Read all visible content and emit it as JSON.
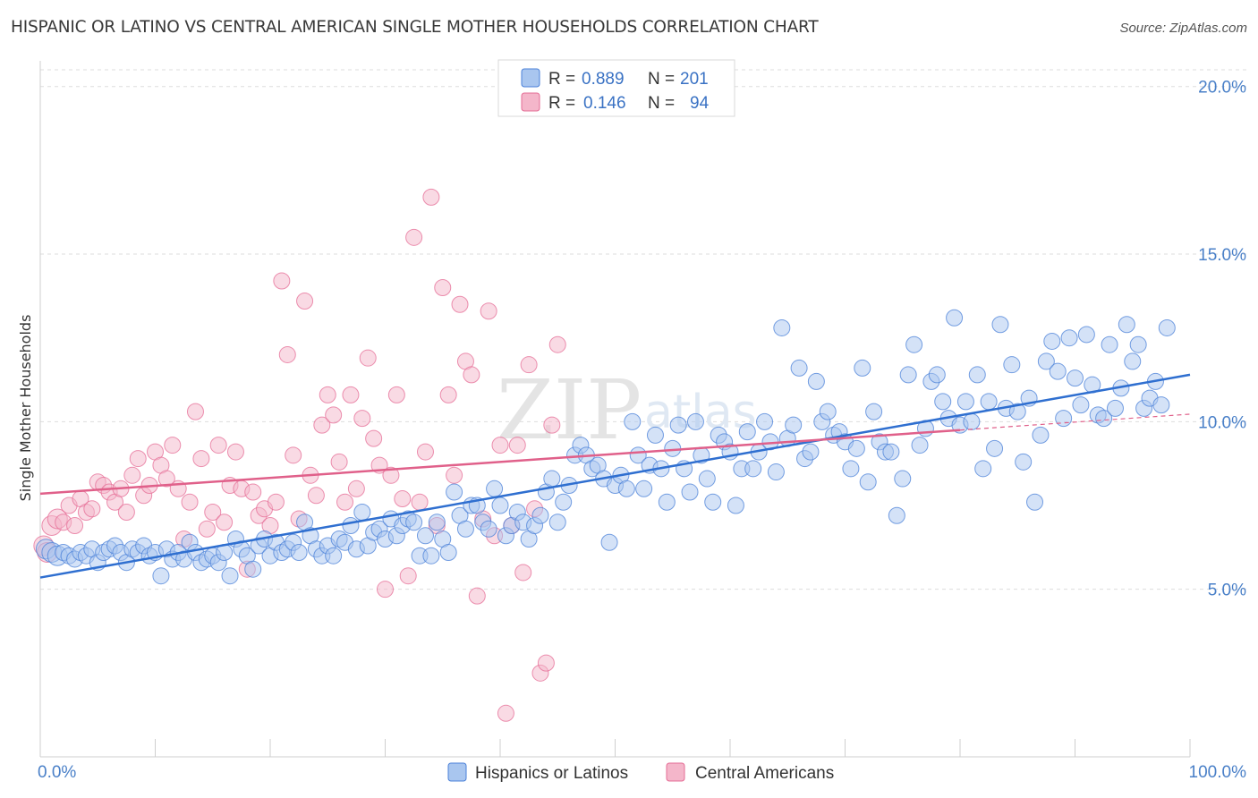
{
  "title": "HISPANIC OR LATINO VS CENTRAL AMERICAN SINGLE MOTHER HOUSEHOLDS CORRELATION CHART",
  "source": "Source: ZipAtlas.com",
  "watermark": {
    "main": "ZIP",
    "sub": "atlas"
  },
  "colors": {
    "blue": "#4a80d8",
    "blue_fill": "#a9c6ef",
    "blue_line": "#2f6fd0",
    "pink": "#e56c95",
    "pink_fill": "#f4b6ca",
    "pink_line": "#e0608a",
    "tick": "#4a80c8",
    "grid": "#dddddd"
  },
  "legend": {
    "rows": [
      {
        "r_label": "R =",
        "r_value": "0.889",
        "n_label": "N =",
        "n_value": "201"
      },
      {
        "r_label": "R =",
        "r_value": "0.146",
        "n_label": "N =",
        "n_value": "94"
      }
    ]
  },
  "bottom_legend": [
    "Hispanics or Latinos",
    "Central Americans"
  ],
  "chart_data": {
    "type": "scatter",
    "title": "HISPANIC OR LATINO VS CENTRAL AMERICAN SINGLE MOTHER HOUSEHOLDS CORRELATION CHART",
    "xlabel": "",
    "ylabel": "Single Mother Households",
    "xlim": [
      0,
      100
    ],
    "ylim": [
      0,
      20.5
    ],
    "x_tick_labels": [
      "0.0%",
      "100.0%"
    ],
    "y_ticks": [
      5,
      10,
      15,
      20
    ],
    "y_tick_labels": [
      "5.0%",
      "10.0%",
      "15.0%",
      "20.0%"
    ],
    "grid": true,
    "legend_position": "top-center",
    "series": [
      {
        "name": "Hispanics or Latinos",
        "color": "#4a80d8",
        "trend": {
          "x": [
            0,
            100
          ],
          "y": [
            5.35,
            11.4
          ]
        },
        "points": [
          [
            0.5,
            6.2
          ],
          [
            1,
            6.1
          ],
          [
            1.5,
            6.0
          ],
          [
            2,
            6.1
          ],
          [
            2.5,
            6.0
          ],
          [
            3,
            5.9
          ],
          [
            3.5,
            6.1
          ],
          [
            4,
            6.0
          ],
          [
            4.5,
            6.2
          ],
          [
            5,
            5.8
          ],
          [
            5.5,
            6.1
          ],
          [
            6,
            6.2
          ],
          [
            6.5,
            6.3
          ],
          [
            7,
            6.1
          ],
          [
            7.5,
            5.8
          ],
          [
            8,
            6.2
          ],
          [
            8.5,
            6.1
          ],
          [
            9,
            6.3
          ],
          [
            9.5,
            6.0
          ],
          [
            10,
            6.1
          ],
          [
            10.5,
            5.4
          ],
          [
            11,
            6.2
          ],
          [
            11.5,
            5.9
          ],
          [
            12,
            6.1
          ],
          [
            12.5,
            5.9
          ],
          [
            13,
            6.4
          ],
          [
            13.5,
            6.1
          ],
          [
            14,
            5.8
          ],
          [
            14.5,
            5.9
          ],
          [
            15,
            6.0
          ],
          [
            15.5,
            5.8
          ],
          [
            16,
            6.1
          ],
          [
            16.5,
            5.4
          ],
          [
            17,
            6.5
          ],
          [
            17.5,
            6.2
          ],
          [
            18,
            6.0
          ],
          [
            18.5,
            5.6
          ],
          [
            19,
            6.3
          ],
          [
            19.5,
            6.5
          ],
          [
            20,
            6.0
          ],
          [
            20.5,
            6.4
          ],
          [
            21,
            6.1
          ],
          [
            21.5,
            6.2
          ],
          [
            22,
            6.4
          ],
          [
            22.5,
            6.1
          ],
          [
            23,
            7.0
          ],
          [
            23.5,
            6.6
          ],
          [
            24,
            6.2
          ],
          [
            24.5,
            6.0
          ],
          [
            25,
            6.3
          ],
          [
            25.5,
            6.0
          ],
          [
            26,
            6.5
          ],
          [
            26.5,
            6.4
          ],
          [
            27,
            6.9
          ],
          [
            27.5,
            6.2
          ],
          [
            28,
            7.3
          ],
          [
            28.5,
            6.3
          ],
          [
            29,
            6.7
          ],
          [
            29.5,
            6.8
          ],
          [
            30,
            6.5
          ],
          [
            30.5,
            7.1
          ],
          [
            31,
            6.6
          ],
          [
            31.5,
            6.9
          ],
          [
            32,
            7.1
          ],
          [
            32.5,
            7.0
          ],
          [
            33,
            6.0
          ],
          [
            33.5,
            6.6
          ],
          [
            34,
            6.0
          ],
          [
            34.5,
            7.0
          ],
          [
            35,
            6.5
          ],
          [
            35.5,
            6.1
          ],
          [
            36,
            7.9
          ],
          [
            36.5,
            7.2
          ],
          [
            37,
            6.8
          ],
          [
            37.5,
            7.5
          ],
          [
            38,
            7.5
          ],
          [
            38.5,
            7.0
          ],
          [
            39,
            6.8
          ],
          [
            39.5,
            8.0
          ],
          [
            40,
            7.5
          ],
          [
            40.5,
            6.6
          ],
          [
            41,
            6.9
          ],
          [
            41.5,
            7.3
          ],
          [
            42,
            7.0
          ],
          [
            42.5,
            6.5
          ],
          [
            43,
            6.9
          ],
          [
            43.5,
            7.2
          ],
          [
            44,
            7.9
          ],
          [
            44.5,
            8.3
          ],
          [
            45,
            7.0
          ],
          [
            45.5,
            7.6
          ],
          [
            46,
            8.1
          ],
          [
            46.5,
            9.0
          ],
          [
            47,
            9.3
          ],
          [
            47.5,
            9.0
          ],
          [
            48,
            8.6
          ],
          [
            48.5,
            8.7
          ],
          [
            49,
            8.3
          ],
          [
            49.5,
            6.4
          ],
          [
            50,
            8.1
          ],
          [
            50.5,
            8.4
          ],
          [
            51,
            8.0
          ],
          [
            51.5,
            10.0
          ],
          [
            52,
            9.0
          ],
          [
            52.5,
            8.0
          ],
          [
            53,
            8.7
          ],
          [
            53.5,
            9.6
          ],
          [
            54,
            8.6
          ],
          [
            54.5,
            7.6
          ],
          [
            55,
            9.2
          ],
          [
            55.5,
            9.9
          ],
          [
            56,
            8.6
          ],
          [
            56.5,
            7.9
          ],
          [
            57,
            10.0
          ],
          [
            57.5,
            9.0
          ],
          [
            58,
            8.3
          ],
          [
            58.5,
            7.6
          ],
          [
            59,
            9.6
          ],
          [
            59.5,
            9.4
          ],
          [
            60,
            9.1
          ],
          [
            60.5,
            7.5
          ],
          [
            61,
            8.6
          ],
          [
            61.5,
            9.7
          ],
          [
            62,
            8.6
          ],
          [
            62.5,
            9.1
          ],
          [
            63,
            10.0
          ],
          [
            63.5,
            9.4
          ],
          [
            64,
            8.5
          ],
          [
            64.5,
            12.8
          ],
          [
            65,
            9.5
          ],
          [
            65.5,
            9.9
          ],
          [
            66,
            11.6
          ],
          [
            66.5,
            8.9
          ],
          [
            67,
            9.1
          ],
          [
            67.5,
            11.2
          ],
          [
            68,
            10.0
          ],
          [
            68.5,
            10.3
          ],
          [
            69,
            9.6
          ],
          [
            69.5,
            9.7
          ],
          [
            70,
            9.4
          ],
          [
            70.5,
            8.6
          ],
          [
            71,
            9.2
          ],
          [
            71.5,
            11.6
          ],
          [
            72,
            8.2
          ],
          [
            72.5,
            10.3
          ],
          [
            73,
            9.4
          ],
          [
            73.5,
            9.1
          ],
          [
            74,
            9.1
          ],
          [
            74.5,
            7.2
          ],
          [
            75,
            8.3
          ],
          [
            75.5,
            11.4
          ],
          [
            76,
            12.3
          ],
          [
            76.5,
            9.3
          ],
          [
            77,
            9.8
          ],
          [
            77.5,
            11.2
          ],
          [
            78,
            11.4
          ],
          [
            78.5,
            10.6
          ],
          [
            79,
            10.1
          ],
          [
            79.5,
            13.1
          ],
          [
            80,
            9.9
          ],
          [
            80.5,
            10.6
          ],
          [
            81,
            10.0
          ],
          [
            81.5,
            11.4
          ],
          [
            82,
            8.6
          ],
          [
            82.5,
            10.6
          ],
          [
            83,
            9.2
          ],
          [
            83.5,
            12.9
          ],
          [
            84,
            10.4
          ],
          [
            84.5,
            11.7
          ],
          [
            85,
            10.3
          ],
          [
            85.5,
            8.8
          ],
          [
            86,
            10.7
          ],
          [
            86.5,
            7.6
          ],
          [
            87,
            9.6
          ],
          [
            87.5,
            11.8
          ],
          [
            88,
            12.4
          ],
          [
            88.5,
            11.5
          ],
          [
            89,
            10.1
          ],
          [
            89.5,
            12.5
          ],
          [
            90,
            11.3
          ],
          [
            90.5,
            10.5
          ],
          [
            91,
            12.6
          ],
          [
            91.5,
            11.1
          ],
          [
            92,
            10.2
          ],
          [
            92.5,
            10.1
          ],
          [
            93,
            12.3
          ],
          [
            93.5,
            10.4
          ],
          [
            94,
            11.0
          ],
          [
            94.5,
            12.9
          ],
          [
            95,
            11.8
          ],
          [
            95.5,
            12.3
          ],
          [
            96,
            10.4
          ],
          [
            96.5,
            10.7
          ],
          [
            97,
            11.2
          ],
          [
            97.5,
            10.5
          ],
          [
            98,
            12.8
          ]
        ]
      },
      {
        "name": "Central Americans",
        "color": "#e56c95",
        "trend": {
          "x": [
            0,
            80
          ],
          "y": [
            7.85,
            9.75
          ]
        },
        "points": [
          [
            0.3,
            6.3
          ],
          [
            0.6,
            6.1
          ],
          [
            1,
            6.9
          ],
          [
            1.5,
            7.1
          ],
          [
            2,
            7.0
          ],
          [
            2.5,
            7.5
          ],
          [
            3,
            6.9
          ],
          [
            3.5,
            7.7
          ],
          [
            4,
            7.3
          ],
          [
            4.5,
            7.4
          ],
          [
            5,
            8.2
          ],
          [
            5.5,
            8.1
          ],
          [
            6,
            7.9
          ],
          [
            6.5,
            7.6
          ],
          [
            7,
            8.0
          ],
          [
            7.5,
            7.3
          ],
          [
            8,
            8.4
          ],
          [
            8.5,
            8.9
          ],
          [
            9,
            7.8
          ],
          [
            9.5,
            8.1
          ],
          [
            10,
            9.1
          ],
          [
            10.5,
            8.7
          ],
          [
            11,
            8.3
          ],
          [
            11.5,
            9.3
          ],
          [
            12,
            8.0
          ],
          [
            12.5,
            6.5
          ],
          [
            13,
            7.6
          ],
          [
            13.5,
            10.3
          ],
          [
            14,
            8.9
          ],
          [
            14.5,
            6.8
          ],
          [
            15,
            7.3
          ],
          [
            15.5,
            9.3
          ],
          [
            16,
            7.0
          ],
          [
            16.5,
            8.1
          ],
          [
            17,
            9.1
          ],
          [
            17.5,
            8.0
          ],
          [
            18,
            5.6
          ],
          [
            18.5,
            7.9
          ],
          [
            19,
            7.2
          ],
          [
            19.5,
            7.4
          ],
          [
            20,
            6.9
          ],
          [
            20.5,
            7.6
          ],
          [
            21,
            14.2
          ],
          [
            21.5,
            12.0
          ],
          [
            22,
            9.0
          ],
          [
            22.5,
            7.1
          ],
          [
            23,
            13.6
          ],
          [
            23.5,
            8.4
          ],
          [
            24,
            7.8
          ],
          [
            24.5,
            9.9
          ],
          [
            25,
            10.8
          ],
          [
            25.5,
            10.2
          ],
          [
            26,
            8.8
          ],
          [
            26.5,
            7.6
          ],
          [
            27,
            10.8
          ],
          [
            27.5,
            8.0
          ],
          [
            28,
            10.1
          ],
          [
            28.5,
            11.9
          ],
          [
            29,
            9.5
          ],
          [
            29.5,
            8.7
          ],
          [
            30,
            5.0
          ],
          [
            30.5,
            8.4
          ],
          [
            31,
            10.8
          ],
          [
            31.5,
            7.7
          ],
          [
            32,
            5.4
          ],
          [
            32.5,
            15.5
          ],
          [
            33,
            7.6
          ],
          [
            33.5,
            9.1
          ],
          [
            34,
            16.7
          ],
          [
            34.5,
            6.9
          ],
          [
            35,
            14.0
          ],
          [
            35.5,
            10.8
          ],
          [
            36,
            8.4
          ],
          [
            36.5,
            13.5
          ],
          [
            37,
            11.8
          ],
          [
            37.5,
            11.4
          ],
          [
            38,
            4.8
          ],
          [
            38.5,
            7.1
          ],
          [
            39,
            13.3
          ],
          [
            39.5,
            6.6
          ],
          [
            40,
            9.3
          ],
          [
            40.5,
            1.3
          ],
          [
            41,
            6.9
          ],
          [
            41.5,
            9.3
          ],
          [
            42,
            5.5
          ],
          [
            42.5,
            11.7
          ],
          [
            43,
            7.4
          ],
          [
            43.5,
            2.5
          ],
          [
            44,
            2.8
          ],
          [
            44.5,
            9.9
          ],
          [
            45,
            12.3
          ]
        ]
      }
    ]
  }
}
